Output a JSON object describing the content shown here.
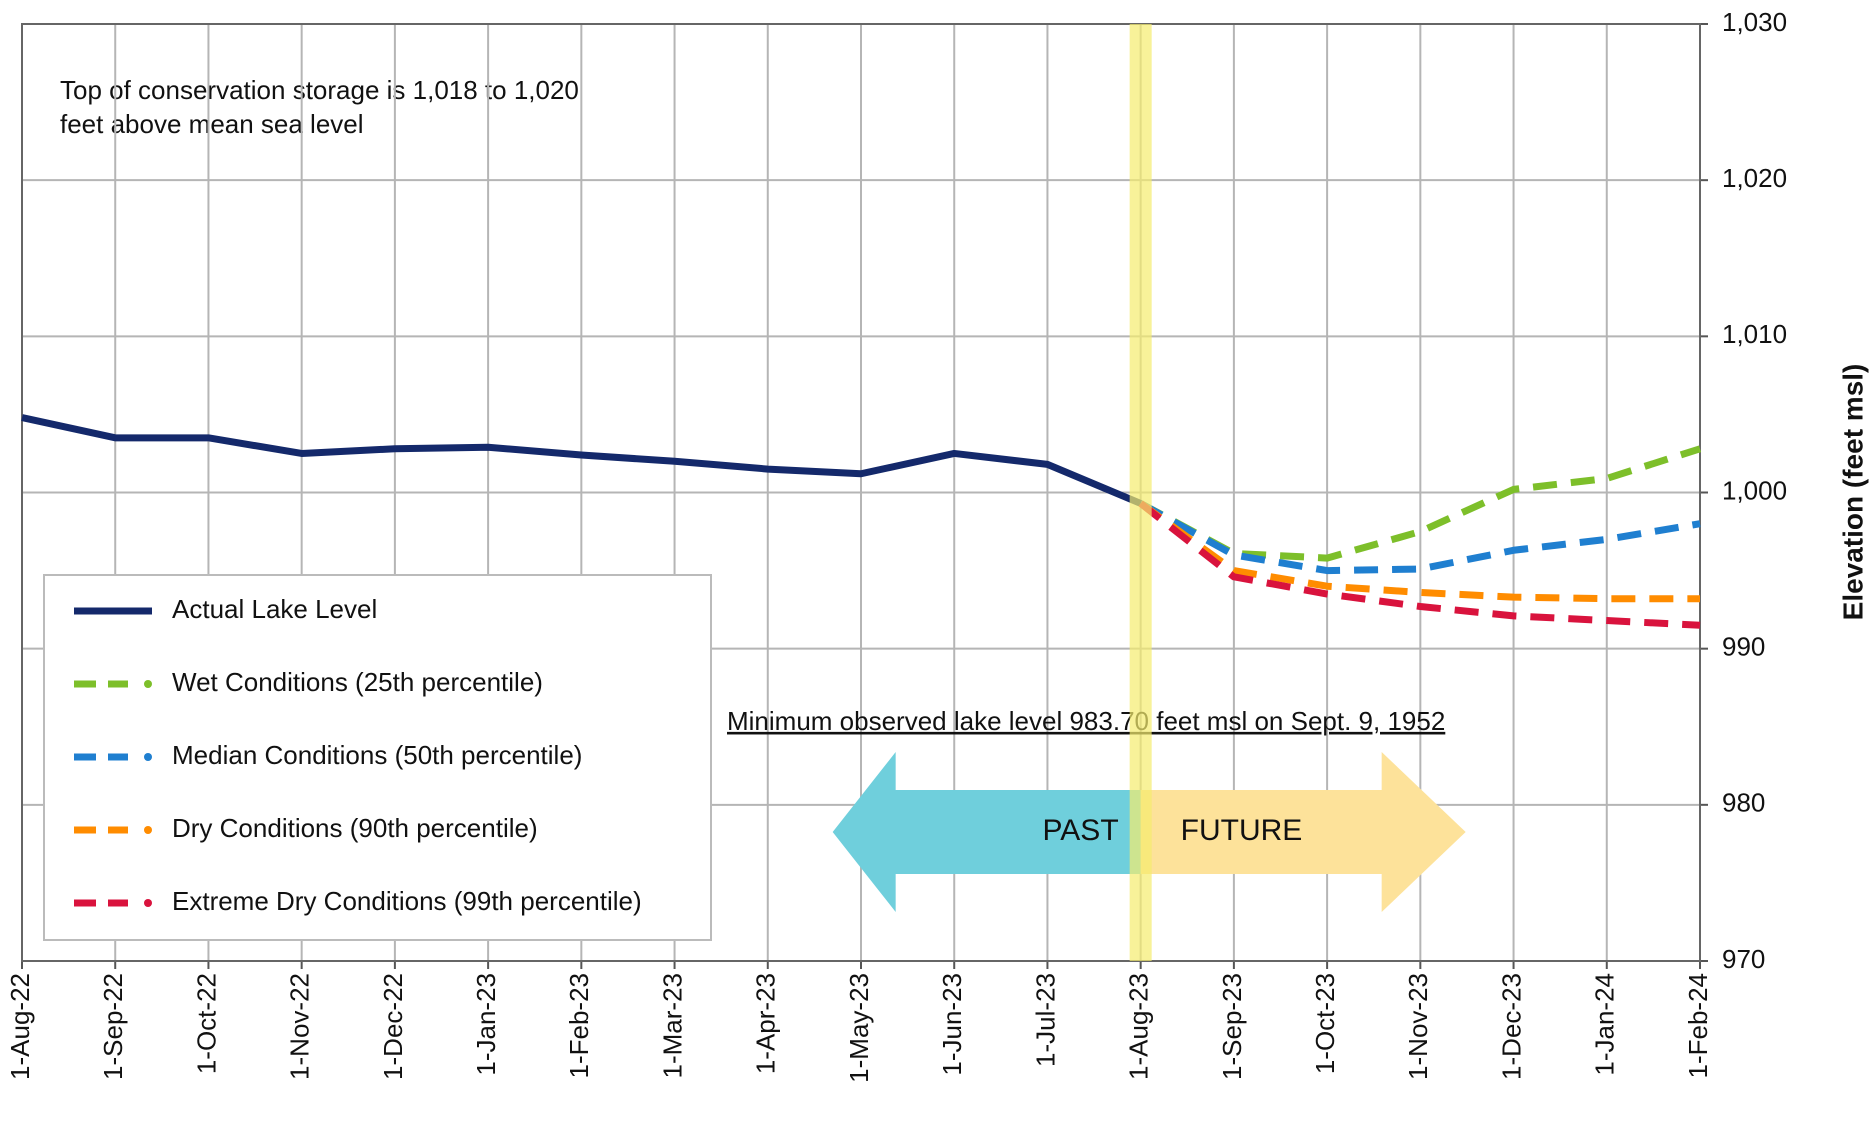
{
  "chart_data": {
    "type": "line",
    "annotation_lines": [
      "Top of conservation storage is 1,018 to 1,020",
      "feet above mean sea level"
    ],
    "note": "Minimum observed lake level 983.70 feet msl on Sept. 9, 1952",
    "past_label": "PAST",
    "future_label": "FUTURE",
    "y_label": "Elevation (feet msl)",
    "categories": [
      "1-Aug-22",
      "1-Sep-22",
      "1-Oct-22",
      "1-Nov-22",
      "1-Dec-22",
      "1-Jan-23",
      "1-Feb-23",
      "1-Mar-23",
      "1-Apr-23",
      "1-May-23",
      "1-Jun-23",
      "1-Jul-23",
      "1-Aug-23",
      "1-Sep-23",
      "1-Oct-23",
      "1-Nov-23",
      "1-Dec-23",
      "1-Jan-24",
      "1-Feb-24"
    ],
    "series": [
      {
        "name": "Actual Lake Level",
        "color": "#14296b",
        "style": "solid",
        "values": [
          1004.8,
          1003.5,
          1003.5,
          1002.5,
          1002.8,
          1002.9,
          1002.4,
          1002.0,
          1001.5,
          1001.2,
          1002.5,
          1001.8,
          999.3,
          null,
          null,
          null,
          null,
          null,
          null
        ]
      },
      {
        "name": "Wet Conditions (25th percentile)",
        "color": "#7dbf2a",
        "style": "dashed",
        "values": [
          null,
          null,
          null,
          null,
          null,
          null,
          null,
          null,
          null,
          null,
          null,
          null,
          999.3,
          996.1,
          995.8,
          997.5,
          1000.2,
          1000.9,
          1002.8
        ]
      },
      {
        "name": "Median Conditions (50th percentile)",
        "color": "#1f7fd0",
        "style": "dashed",
        "values": [
          null,
          null,
          null,
          null,
          null,
          null,
          null,
          null,
          null,
          null,
          null,
          null,
          999.3,
          996.0,
          995.0,
          995.1,
          996.3,
          997.0,
          998.0
        ]
      },
      {
        "name": "Dry Conditions (90th percentile)",
        "color": "#ff8c00",
        "style": "dashed",
        "values": [
          null,
          null,
          null,
          null,
          null,
          null,
          null,
          null,
          null,
          null,
          null,
          null,
          999.3,
          995.0,
          994.0,
          993.6,
          993.3,
          993.2,
          993.2
        ]
      },
      {
        "name": "Extreme Dry Conditions (99th percentile)",
        "color": "#d9133d",
        "style": "dashed",
        "values": [
          null,
          null,
          null,
          null,
          null,
          null,
          null,
          null,
          null,
          null,
          null,
          null,
          999.3,
          994.6,
          993.5,
          992.7,
          992.1,
          991.8,
          991.5
        ]
      }
    ],
    "ylim": [
      970,
      1030
    ],
    "yticks": [
      970,
      980,
      990,
      {
        "value": 1000,
        "label": "1,000"
      },
      {
        "value": 1010,
        "label": "1,010"
      },
      {
        "value": 1020,
        "label": "1,020"
      },
      {
        "value": 1030,
        "label": "1,030"
      }
    ],
    "grid": true
  }
}
